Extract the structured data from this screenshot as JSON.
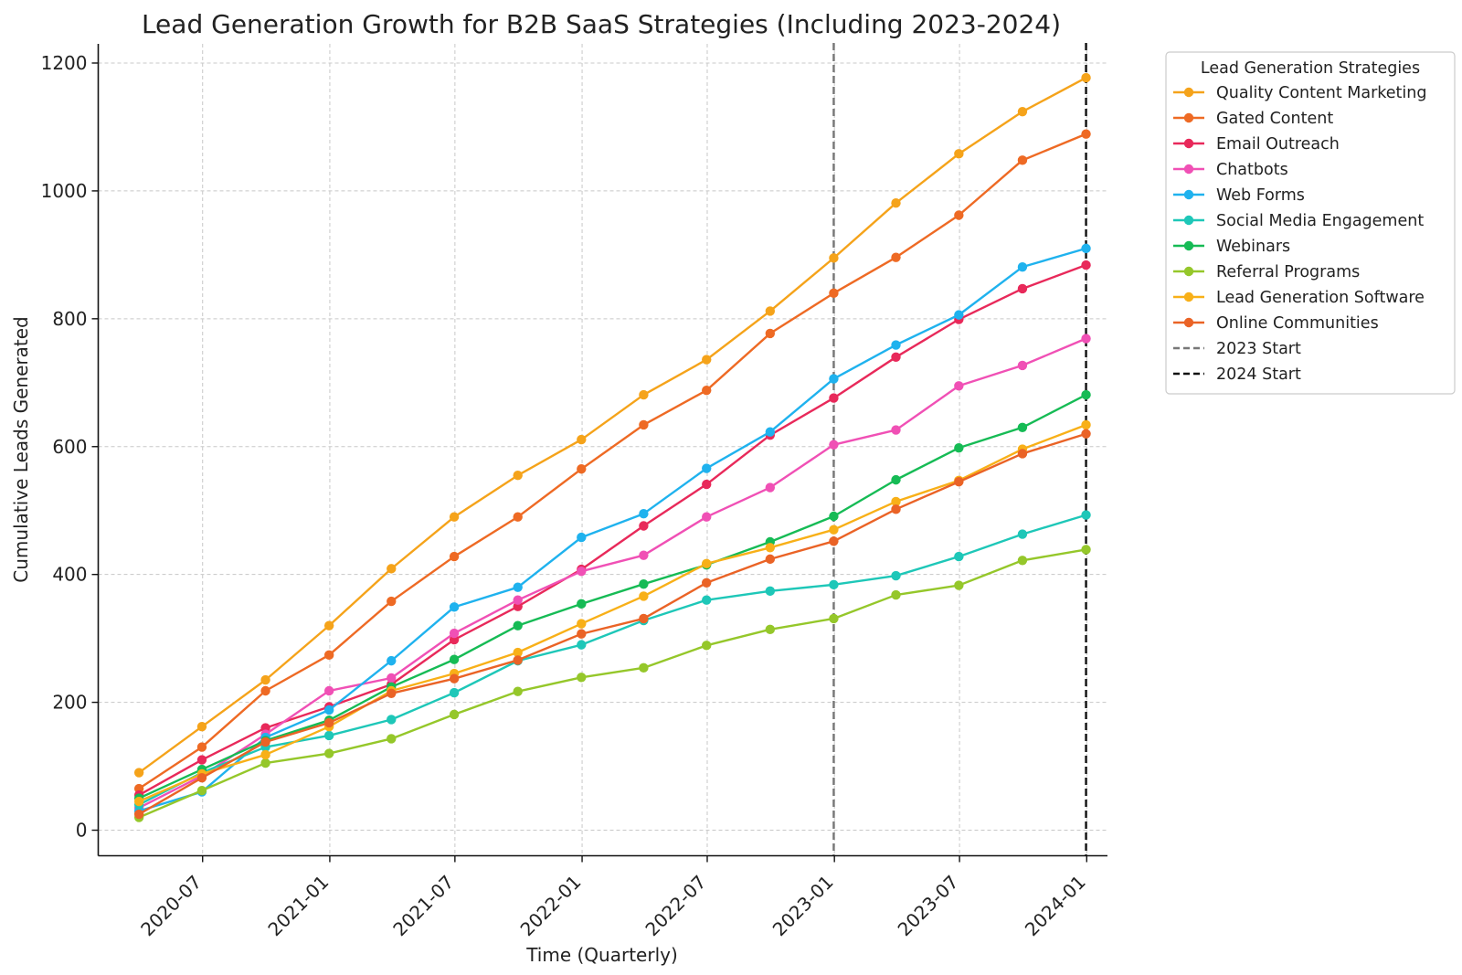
{
  "chart_data": {
    "type": "line",
    "title": "Lead Generation Growth for B2B SaaS Strategies (Including 2023-2024)",
    "xlabel": "Time (Quarterly)",
    "ylabel": "Cumulative Leads Generated",
    "ylim": [
      -40,
      1230
    ],
    "yticks": [
      0,
      200,
      400,
      600,
      800,
      1000,
      1200
    ],
    "xlim": [
      "2020-02-01",
      "2024-01-31"
    ],
    "xticks": [
      "2020-07",
      "2021-01",
      "2021-07",
      "2022-01",
      "2022-07",
      "2023-01",
      "2023-07",
      "2024-01"
    ],
    "grid": true,
    "legend": {
      "title": "Lead Generation Strategies",
      "position": "upper-left-outside"
    },
    "x": [
      "2020-03-31",
      "2020-06-30",
      "2020-09-30",
      "2020-12-31",
      "2021-03-31",
      "2021-06-30",
      "2021-09-30",
      "2021-12-31",
      "2022-03-31",
      "2022-06-30",
      "2022-09-30",
      "2022-12-31",
      "2023-03-31",
      "2023-06-30",
      "2023-09-30",
      "2023-12-31"
    ],
    "series": [
      {
        "name": "Quality Content Marketing",
        "color": "#F5A31A",
        "values": [
          90,
          162,
          235,
          320,
          409,
          490,
          555,
          611,
          681,
          736,
          812,
          895,
          981,
          1058,
          1124,
          1177
        ]
      },
      {
        "name": "Gated Content",
        "color": "#EE6A24",
        "values": [
          65,
          130,
          218,
          274,
          358,
          428,
          490,
          565,
          634,
          688,
          777,
          840,
          896,
          962,
          1048,
          1089
        ]
      },
      {
        "name": "Email Outreach",
        "color": "#E8295A",
        "values": [
          55,
          110,
          160,
          193,
          228,
          298,
          350,
          408,
          476,
          541,
          618,
          676,
          740,
          799,
          847,
          884
        ]
      },
      {
        "name": "Chatbots",
        "color": "#F050B5",
        "values": [
          35,
          85,
          150,
          218,
          238,
          308,
          360,
          405,
          430,
          490,
          536,
          603,
          626,
          695,
          727,
          769
        ]
      },
      {
        "name": "Web Forms",
        "color": "#1FB2EE",
        "values": [
          30,
          60,
          145,
          188,
          265,
          349,
          380,
          458,
          495,
          566,
          623,
          706,
          759,
          806,
          881,
          910
        ]
      },
      {
        "name": "Social Media Engagement",
        "color": "#1EC7B8",
        "values": [
          40,
          90,
          130,
          148,
          173,
          215,
          265,
          290,
          328,
          360,
          374,
          384,
          398,
          428,
          463,
          493
        ]
      },
      {
        "name": "Webinars",
        "color": "#16BB55",
        "values": [
          50,
          95,
          140,
          172,
          224,
          267,
          320,
          354,
          385,
          415,
          451,
          491,
          548,
          598,
          630,
          681
        ]
      },
      {
        "name": "Referral Programs",
        "color": "#95C72A",
        "values": [
          20,
          62,
          105,
          120,
          143,
          181,
          217,
          239,
          254,
          289,
          314,
          331,
          368,
          383,
          422,
          439
        ]
      },
      {
        "name": "Lead Generation Software",
        "color": "#F8B018",
        "values": [
          45,
          88,
          118,
          162,
          218,
          245,
          278,
          323,
          366,
          417,
          442,
          470,
          514,
          547,
          596,
          634
        ]
      },
      {
        "name": "Online Communities",
        "color": "#EA6326",
        "values": [
          25,
          82,
          138,
          168,
          214,
          237,
          266,
          307,
          331,
          387,
          424,
          452,
          502,
          545,
          589,
          620
        ]
      }
    ],
    "vlines": [
      {
        "name": "2023 Start",
        "x": "2022-12-31",
        "color": "#777777"
      },
      {
        "name": "2024 Start",
        "x": "2023-12-31",
        "color": "#111111"
      }
    ]
  }
}
